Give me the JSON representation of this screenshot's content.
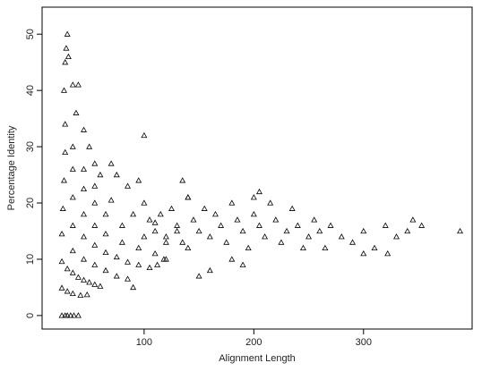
{
  "chart_data": {
    "type": "scatter",
    "xlabel": "Alignment Length",
    "ylabel": "Percentage Identity",
    "color": "#000000",
    "marker": "triangle",
    "xlim": [
      7,
      399
    ],
    "ylim": [
      -2.4,
      54.8
    ],
    "xticks": [
      100,
      200,
      300
    ],
    "yticks": [
      0,
      10,
      20,
      30,
      40,
      50
    ],
    "x": [
      25,
      28,
      30,
      33,
      36,
      40,
      25,
      30,
      35,
      42,
      48,
      25,
      30,
      35,
      40,
      45,
      50,
      55,
      60,
      25,
      35,
      45,
      55,
      65,
      75,
      85,
      90,
      26,
      35,
      45,
      55,
      65,
      75,
      85,
      95,
      105,
      27,
      35,
      45,
      55,
      65,
      80,
      95,
      110,
      120,
      28,
      35,
      45,
      55,
      65,
      80,
      100,
      120,
      140,
      28,
      35,
      45,
      55,
      70,
      90,
      110,
      130,
      30,
      29,
      28,
      31,
      27,
      35,
      40,
      38,
      45,
      50,
      55,
      60,
      70,
      75,
      100,
      85,
      95,
      100,
      105,
      110,
      115,
      120,
      125,
      130,
      135,
      140,
      145,
      150,
      155,
      160,
      165,
      170,
      175,
      180,
      185,
      190,
      195,
      200,
      205,
      210,
      215,
      220,
      225,
      230,
      235,
      240,
      245,
      250,
      255,
      260,
      265,
      270,
      280,
      290,
      300,
      310,
      320,
      330,
      340,
      345,
      353,
      388,
      300,
      322,
      200,
      205,
      190,
      150,
      160,
      180,
      135,
      140,
      118,
      112
    ],
    "y": [
      0,
      0,
      0,
      0,
      0,
      0,
      4.9,
      4.3,
      3.9,
      3.6,
      3.7,
      9.6,
      8.3,
      7.6,
      6.8,
      6.3,
      5.9,
      5.5,
      5.2,
      14.5,
      11.5,
      10,
      9,
      8,
      7,
      6.5,
      5,
      19,
      16,
      14,
      12.5,
      11.2,
      10.4,
      9.5,
      9,
      8.5,
      24,
      21,
      18,
      16,
      14.5,
      13,
      12,
      11,
      10,
      29,
      26,
      22.5,
      20,
      18,
      16,
      14,
      13,
      12,
      34,
      30,
      26,
      23,
      20.5,
      18,
      16.5,
      15,
      50,
      47.5,
      45,
      46,
      40,
      41,
      41,
      36,
      33,
      30,
      27,
      25,
      27,
      25,
      32,
      23,
      24,
      20,
      17,
      15,
      18,
      14,
      19,
      16,
      13,
      21,
      17,
      15,
      19,
      14,
      18,
      16,
      13,
      20,
      17,
      15,
      12,
      18,
      16,
      14,
      20,
      17,
      13,
      15,
      19,
      16,
      12,
      14,
      17,
      15,
      12,
      16,
      14,
      13,
      15,
      12,
      16,
      14,
      15,
      17,
      16,
      15,
      11,
      11,
      21,
      22,
      9,
      7,
      8,
      10,
      24,
      21,
      10,
      9
    ]
  }
}
